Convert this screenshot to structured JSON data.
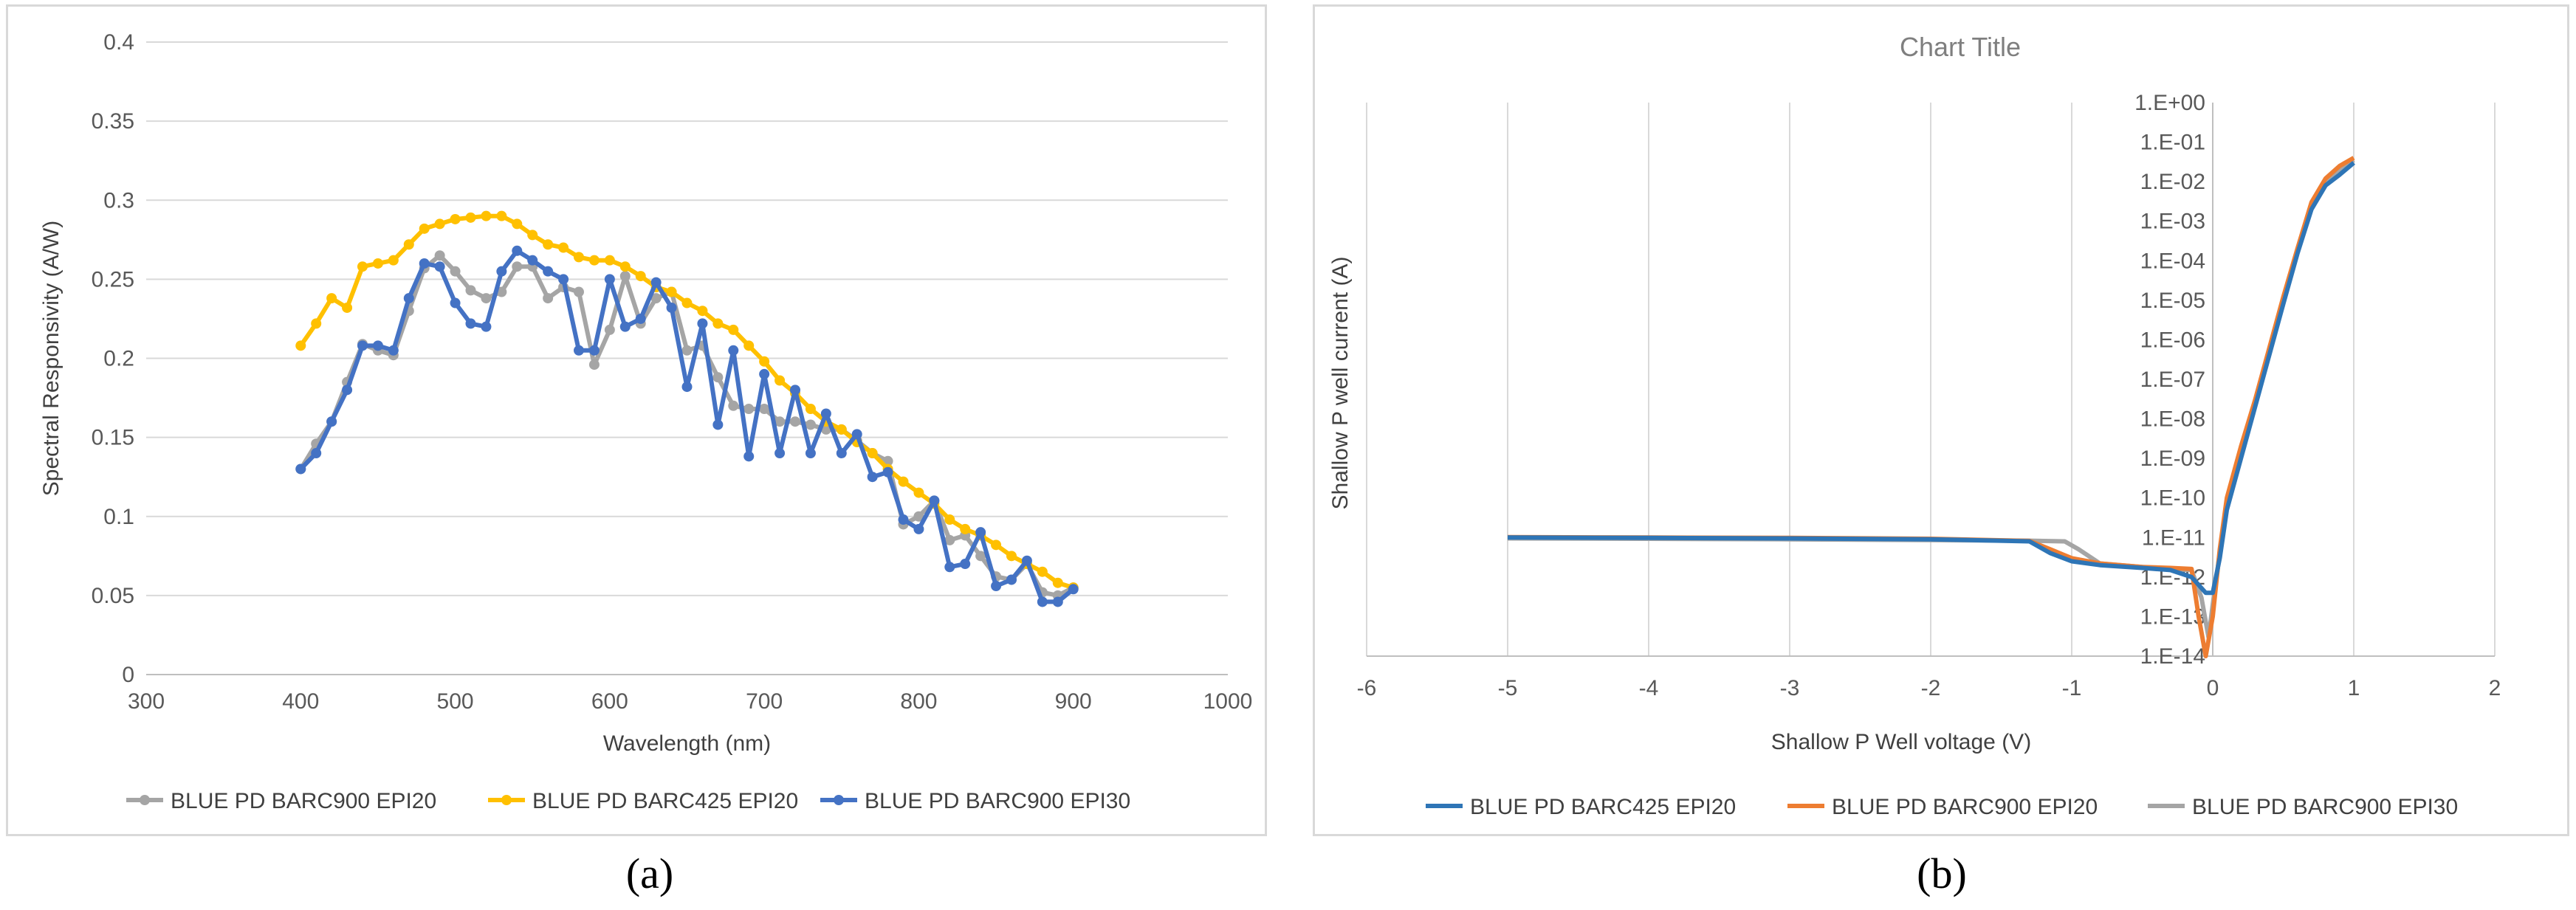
{
  "panel_labels": {
    "a": "(a)",
    "b": "(b)"
  },
  "chart_data": [
    {
      "type": "line",
      "title": "",
      "xlabel": "Wavelength (nm)",
      "ylabel": "Spectral Responsivity (A/W)",
      "xlim": [
        300,
        1000
      ],
      "ylim": [
        0,
        0.4
      ],
      "x_ticks": [
        "300",
        "400",
        "500",
        "600",
        "700",
        "800",
        "900",
        "1000"
      ],
      "y_ticks": [
        "0",
        "0.05",
        "0.1",
        "0.15",
        "0.2",
        "0.25",
        "0.3",
        "0.35",
        "0.4"
      ],
      "grid": "horizontal",
      "markers": true,
      "legend_position": "bottom",
      "series": [
        {
          "name": "BLUE PD BARC900 EPI20",
          "color": "#a5a5a5",
          "points": [
            [
              400,
              0.13
            ],
            [
              410,
              0.146
            ],
            [
              420,
              0.16
            ],
            [
              430,
              0.185
            ],
            [
              440,
              0.209
            ],
            [
              450,
              0.205
            ],
            [
              460,
              0.202
            ],
            [
              470,
              0.23
            ],
            [
              480,
              0.257
            ],
            [
              490,
              0.265
            ],
            [
              500,
              0.255
            ],
            [
              510,
              0.243
            ],
            [
              520,
              0.238
            ],
            [
              530,
              0.242
            ],
            [
              540,
              0.258
            ],
            [
              550,
              0.258
            ],
            [
              560,
              0.238
            ],
            [
              570,
              0.245
            ],
            [
              580,
              0.242
            ],
            [
              590,
              0.196
            ],
            [
              600,
              0.218
            ],
            [
              610,
              0.252
            ],
            [
              620,
              0.222
            ],
            [
              630,
              0.238
            ],
            [
              640,
              0.242
            ],
            [
              650,
              0.205
            ],
            [
              660,
              0.208
            ],
            [
              670,
              0.188
            ],
            [
              680,
              0.17
            ],
            [
              690,
              0.168
            ],
            [
              700,
              0.168
            ],
            [
              710,
              0.16
            ],
            [
              720,
              0.16
            ],
            [
              730,
              0.158
            ],
            [
              740,
              0.155
            ],
            [
              750,
              0.155
            ],
            [
              760,
              0.148
            ],
            [
              770,
              0.14
            ],
            [
              780,
              0.135
            ],
            [
              790,
              0.095
            ],
            [
              800,
              0.1
            ],
            [
              810,
              0.11
            ],
            [
              820,
              0.085
            ],
            [
              830,
              0.088
            ],
            [
              840,
              0.075
            ],
            [
              850,
              0.062
            ],
            [
              860,
              0.06
            ],
            [
              870,
              0.07
            ],
            [
              880,
              0.052
            ],
            [
              890,
              0.05
            ],
            [
              900,
              0.055
            ]
          ]
        },
        {
          "name": "BLUE PD BARC425 EPI20",
          "color": "#ffc000",
          "points": [
            [
              400,
              0.208
            ],
            [
              410,
              0.222
            ],
            [
              420,
              0.238
            ],
            [
              430,
              0.232
            ],
            [
              440,
              0.258
            ],
            [
              450,
              0.26
            ],
            [
              460,
              0.262
            ],
            [
              470,
              0.272
            ],
            [
              480,
              0.282
            ],
            [
              490,
              0.285
            ],
            [
              500,
              0.288
            ],
            [
              510,
              0.289
            ],
            [
              520,
              0.29
            ],
            [
              530,
              0.29
            ],
            [
              540,
              0.285
            ],
            [
              550,
              0.278
            ],
            [
              560,
              0.272
            ],
            [
              570,
              0.27
            ],
            [
              580,
              0.264
            ],
            [
              590,
              0.262
            ],
            [
              600,
              0.262
            ],
            [
              610,
              0.258
            ],
            [
              620,
              0.252
            ],
            [
              630,
              0.245
            ],
            [
              640,
              0.242
            ],
            [
              650,
              0.235
            ],
            [
              660,
              0.23
            ],
            [
              670,
              0.222
            ],
            [
              680,
              0.218
            ],
            [
              690,
              0.208
            ],
            [
              700,
              0.198
            ],
            [
              710,
              0.186
            ],
            [
              720,
              0.178
            ],
            [
              730,
              0.168
            ],
            [
              740,
              0.16
            ],
            [
              750,
              0.155
            ],
            [
              760,
              0.147
            ],
            [
              770,
              0.14
            ],
            [
              780,
              0.13
            ],
            [
              790,
              0.122
            ],
            [
              800,
              0.115
            ],
            [
              810,
              0.108
            ],
            [
              820,
              0.098
            ],
            [
              830,
              0.092
            ],
            [
              840,
              0.088
            ],
            [
              850,
              0.082
            ],
            [
              860,
              0.075
            ],
            [
              870,
              0.07
            ],
            [
              880,
              0.065
            ],
            [
              890,
              0.058
            ],
            [
              900,
              0.055
            ]
          ]
        },
        {
          "name": "BLUE PD BARC900 EPI30",
          "color": "#4472c4",
          "points": [
            [
              400,
              0.13
            ],
            [
              410,
              0.14
            ],
            [
              420,
              0.16
            ],
            [
              430,
              0.18
            ],
            [
              440,
              0.208
            ],
            [
              450,
              0.208
            ],
            [
              460,
              0.205
            ],
            [
              470,
              0.238
            ],
            [
              480,
              0.26
            ],
            [
              490,
              0.258
            ],
            [
              500,
              0.235
            ],
            [
              510,
              0.222
            ],
            [
              520,
              0.22
            ],
            [
              530,
              0.255
            ],
            [
              540,
              0.268
            ],
            [
              550,
              0.262
            ],
            [
              560,
              0.255
            ],
            [
              570,
              0.25
            ],
            [
              580,
              0.205
            ],
            [
              590,
              0.205
            ],
            [
              600,
              0.25
            ],
            [
              610,
              0.22
            ],
            [
              620,
              0.225
            ],
            [
              630,
              0.248
            ],
            [
              640,
              0.232
            ],
            [
              650,
              0.182
            ],
            [
              660,
              0.222
            ],
            [
              670,
              0.158
            ],
            [
              680,
              0.205
            ],
            [
              690,
              0.138
            ],
            [
              700,
              0.19
            ],
            [
              710,
              0.14
            ],
            [
              720,
              0.18
            ],
            [
              730,
              0.14
            ],
            [
              740,
              0.165
            ],
            [
              750,
              0.14
            ],
            [
              760,
              0.152
            ],
            [
              770,
              0.125
            ],
            [
              780,
              0.128
            ],
            [
              790,
              0.098
            ],
            [
              800,
              0.092
            ],
            [
              810,
              0.11
            ],
            [
              820,
              0.068
            ],
            [
              830,
              0.07
            ],
            [
              840,
              0.09
            ],
            [
              850,
              0.056
            ],
            [
              860,
              0.06
            ],
            [
              870,
              0.072
            ],
            [
              880,
              0.046
            ],
            [
              890,
              0.046
            ],
            [
              900,
              0.054
            ]
          ]
        }
      ]
    },
    {
      "type": "line",
      "title": "Chart Title",
      "xlabel": "Shallow P Well voltage (V)",
      "ylabel": "Shallow P well current (A)",
      "xlim": [
        -6,
        2
      ],
      "y_scale": "log",
      "ylim": [
        1e-14,
        1
      ],
      "x_ticks": [
        "-6",
        "-5",
        "-4",
        "-3",
        "-2",
        "-1",
        "0",
        "1",
        "2"
      ],
      "y_ticks": [
        "1.E-14",
        "1.E-13",
        "1.E-12",
        "1.E-11",
        "1.E-10",
        "1.E-09",
        "1.E-08",
        "1.E-07",
        "1.E-06",
        "1.E-05",
        "1.E-04",
        "1.E-03",
        "1.E-02",
        "1.E-01",
        "1.E+00"
      ],
      "grid": "vertical",
      "y_axis_crosses_at_x": 0,
      "markers": false,
      "legend_position": "bottom",
      "series": [
        {
          "name": "BLUE PD BARC425 EPI20",
          "color": "#2e75b6",
          "points": [
            [
              -5,
              1e-11
            ],
            [
              -4,
              9.8e-12
            ],
            [
              -3,
              9.5e-12
            ],
            [
              -2,
              9e-12
            ],
            [
              -1.3,
              8e-12
            ],
            [
              -1.15,
              4e-12
            ],
            [
              -1.0,
              2.5e-12
            ],
            [
              -0.8,
              2e-12
            ],
            [
              -0.5,
              1.7e-12
            ],
            [
              -0.3,
              1.5e-12
            ],
            [
              -0.15,
              1e-12
            ],
            [
              -0.05,
              4e-13
            ],
            [
              0,
              4e-13
            ],
            [
              0.05,
              3e-12
            ],
            [
              0.1,
              5e-11
            ],
            [
              0.2,
              1e-09
            ],
            [
              0.3,
              2e-08
            ],
            [
              0.4,
              4e-07
            ],
            [
              0.5,
              8e-06
            ],
            [
              0.6,
              0.00015
            ],
            [
              0.7,
              0.002
            ],
            [
              0.8,
              0.008
            ],
            [
              0.9,
              0.015
            ],
            [
              1.0,
              0.03
            ]
          ]
        },
        {
          "name": "BLUE PD BARC900 EPI20",
          "color": "#ed7d31",
          "points": [
            [
              -5,
              1.02e-11
            ],
            [
              -4,
              1e-11
            ],
            [
              -3,
              9.8e-12
            ],
            [
              -2,
              9.3e-12
            ],
            [
              -1.3,
              8.2e-12
            ],
            [
              -1.15,
              5e-12
            ],
            [
              -1.0,
              3e-12
            ],
            [
              -0.8,
              2.2e-12
            ],
            [
              -0.5,
              1.8e-12
            ],
            [
              -0.3,
              1.7e-12
            ],
            [
              -0.15,
              1.6e-12
            ],
            [
              -0.1,
              1e-13
            ],
            [
              -0.05,
              1e-14
            ],
            [
              0,
              1e-13
            ],
            [
              0.05,
              5e-12
            ],
            [
              0.1,
              1e-10
            ],
            [
              0.2,
              2e-09
            ],
            [
              0.3,
              3e-08
            ],
            [
              0.4,
              6e-07
            ],
            [
              0.5,
              1.2e-05
            ],
            [
              0.6,
              0.0002
            ],
            [
              0.7,
              0.003
            ],
            [
              0.8,
              0.012
            ],
            [
              0.9,
              0.025
            ],
            [
              1.0,
              0.04
            ]
          ]
        },
        {
          "name": "BLUE PD BARC900 EPI30",
          "color": "#a5a5a5",
          "points": [
            [
              -5,
              9.5e-12
            ],
            [
              -4,
              9.3e-12
            ],
            [
              -3,
              9e-12
            ],
            [
              -2,
              8.6e-12
            ],
            [
              -1.3,
              8.3e-12
            ],
            [
              -1.05,
              8e-12
            ],
            [
              -0.95,
              5e-12
            ],
            [
              -0.8,
              2.2e-12
            ],
            [
              -0.5,
              1.8e-12
            ],
            [
              -0.3,
              1.6e-12
            ],
            [
              -0.15,
              1.5e-12
            ],
            [
              -0.08,
              3e-13
            ],
            [
              -0.03,
              3e-14
            ],
            [
              0,
              2e-13
            ],
            [
              0.05,
              4e-12
            ],
            [
              0.1,
              8e-11
            ],
            [
              0.2,
              1.5e-09
            ],
            [
              0.3,
              2.5e-08
            ],
            [
              0.4,
              5e-07
            ],
            [
              0.5,
              1e-05
            ],
            [
              0.6,
              0.00018
            ],
            [
              0.7,
              0.0025
            ],
            [
              0.8,
              0.01
            ],
            [
              0.9,
              0.02
            ],
            [
              1.0,
              0.035
            ]
          ]
        }
      ]
    }
  ]
}
